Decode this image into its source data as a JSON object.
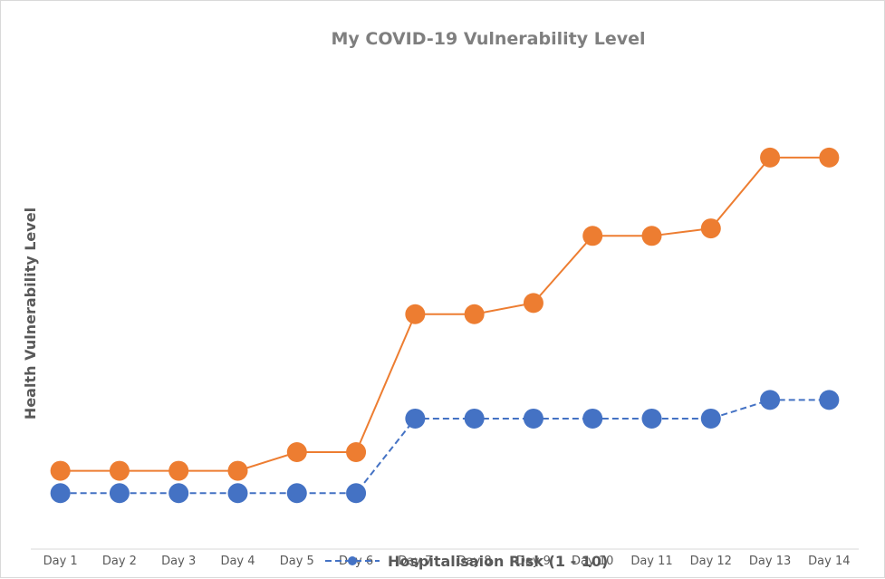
{
  "chart_data": {
    "type": "line",
    "title": "My COVID-19 Vulnerability Level",
    "xlabel": "",
    "ylabel": "Health Vulnerability Level",
    "categories": [
      "Day 1",
      "Day 2",
      "Day 3",
      "Day 4",
      "Day 5",
      "Day 6",
      "Day 7",
      "Day 8",
      "Day 9",
      "Day 10",
      "Day 11",
      "Day 12",
      "Day 13",
      "Day 14"
    ],
    "ylim": [
      0,
      13
    ],
    "grid": false,
    "legend_position": "bottom",
    "series": [
      {
        "name": "Hospitalisaion Risk (1 - 10)",
        "color": "#4472c4",
        "line_style": "dashed",
        "marker": "circle",
        "values": [
          1.5,
          1.5,
          1.5,
          1.5,
          1.5,
          1.5,
          3.5,
          3.5,
          3.5,
          3.5,
          3.5,
          3.5,
          4.0,
          4.0
        ]
      },
      {
        "color": "#ed7d31",
        "line_style": "solid",
        "marker": "circle",
        "values": [
          2.1,
          2.1,
          2.1,
          2.1,
          2.6,
          2.6,
          6.3,
          6.3,
          6.6,
          8.4,
          8.4,
          8.6,
          10.5,
          10.5
        ]
      }
    ]
  }
}
